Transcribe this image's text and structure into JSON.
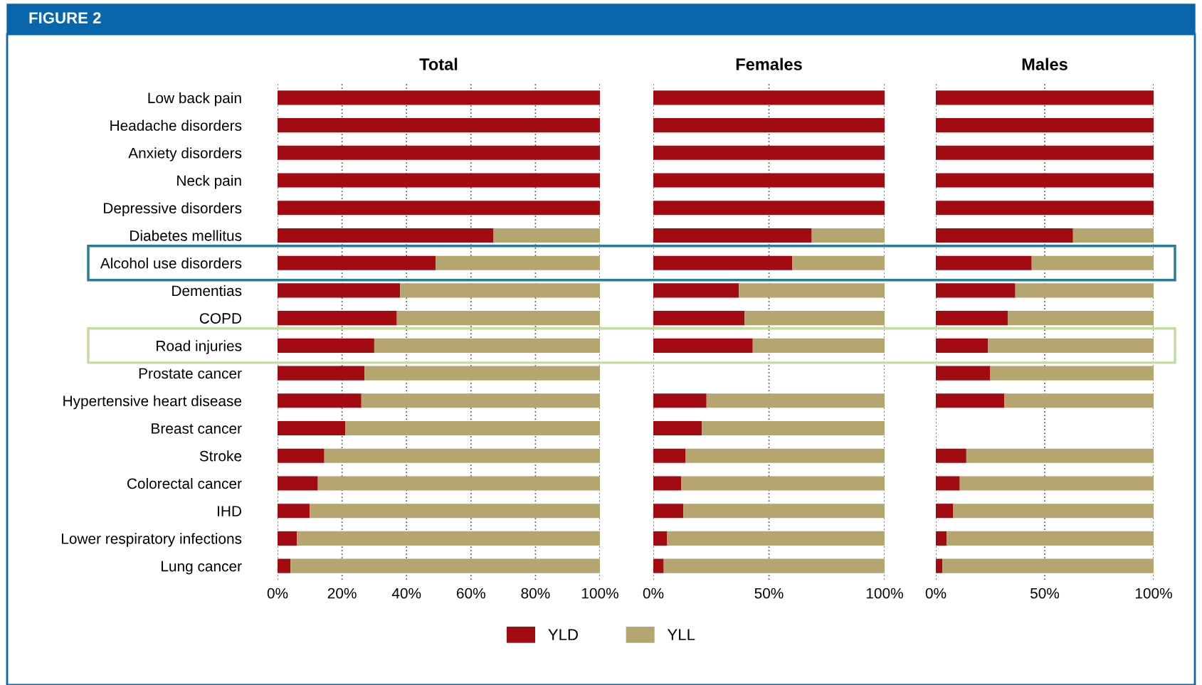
{
  "chart_data": [
    {
      "type": "bar",
      "orientation": "horizontal",
      "stacked": true,
      "title": "Total",
      "annotations": [
        "FIGURE 2"
      ],
      "categories": [
        "Low back pain",
        "Headache disorders",
        "Anxiety disorders",
        "Neck pain",
        "Depressive disorders",
        "Diabetes mellitus",
        "Alcohol use disorders",
        "Dementias",
        "COPD",
        "Road injuries",
        "Prostate cancer",
        "Hypertensive heart disease",
        "Breast cancer",
        "Stroke",
        "Colorectal cancer",
        "IHD",
        "Lower respiratory infections",
        "Lung cancer"
      ],
      "series": [
        {
          "name": "YLD",
          "color": "#a30b13",
          "values": [
            100,
            100,
            100,
            100,
            100,
            67,
            49,
            38,
            37,
            30,
            27,
            26,
            21,
            14.5,
            12.5,
            10,
            6,
            4
          ]
        },
        {
          "name": "YLL",
          "color": "#b5a56f",
          "values": [
            0,
            0,
            0,
            0,
            0,
            33,
            51,
            62,
            63,
            70,
            73,
            74,
            79,
            85.5,
            87.5,
            90,
            94,
            96
          ]
        }
      ],
      "xlim": [
        0,
        100
      ],
      "xticks": [
        {
          "value": 0,
          "label": "0%"
        },
        {
          "value": 20,
          "label": "20%"
        },
        {
          "value": 40,
          "label": "40%"
        },
        {
          "value": 60,
          "label": "60%"
        },
        {
          "value": 80,
          "label": "80%"
        },
        {
          "value": 100,
          "label": "100%"
        }
      ],
      "grid": "x",
      "legend": "bottom"
    },
    {
      "type": "bar",
      "orientation": "horizontal",
      "stacked": true,
      "title": "Females",
      "categories": [
        null,
        null,
        null,
        null,
        null,
        null,
        null,
        null,
        null,
        null,
        null,
        null,
        null,
        null,
        null,
        null,
        null,
        null
      ],
      "series": [
        {
          "color": "#a30b13",
          "values": [
            100,
            100,
            100,
            100,
            100,
            68.5,
            60,
            37,
            39.5,
            43,
            null,
            23,
            21,
            14,
            12,
            13,
            6,
            4.5
          ]
        },
        {
          "color": "#b5a56f",
          "values": [
            0,
            0,
            0,
            0,
            0,
            31.5,
            40,
            63,
            60.5,
            57,
            null,
            77,
            79,
            86,
            88,
            87,
            94,
            95.5
          ]
        }
      ],
      "xlim": [
        0,
        100
      ],
      "xticks": [
        {
          "value": 0,
          "label": "0%"
        },
        {
          "value": 50,
          "label": "50%"
        },
        {
          "value": 100,
          "label": "100%"
        }
      ],
      "grid": "x"
    },
    {
      "type": "bar",
      "orientation": "horizontal",
      "stacked": true,
      "title": "Males",
      "categories": [
        null,
        null,
        null,
        null,
        null,
        null,
        null,
        null,
        null,
        null,
        null,
        null,
        null,
        null,
        null,
        null,
        null,
        null
      ],
      "series": [
        {
          "color": "#a30b13",
          "values": [
            100,
            100,
            100,
            100,
            100,
            63,
            44,
            36.5,
            33,
            24,
            25,
            31.5,
            null,
            14,
            11,
            8,
            5,
            3
          ]
        },
        {
          "color": "#b5a56f",
          "values": [
            0,
            0,
            0,
            0,
            0,
            37,
            56,
            63.5,
            67,
            76,
            75,
            68.5,
            null,
            86,
            89,
            92,
            95,
            97
          ]
        }
      ],
      "xlim": [
        0,
        100
      ],
      "xticks": [
        {
          "value": 0,
          "label": "0%"
        },
        {
          "value": 50,
          "label": "50%"
        },
        {
          "value": 100,
          "label": "100%"
        }
      ],
      "grid": "x"
    }
  ]
}
